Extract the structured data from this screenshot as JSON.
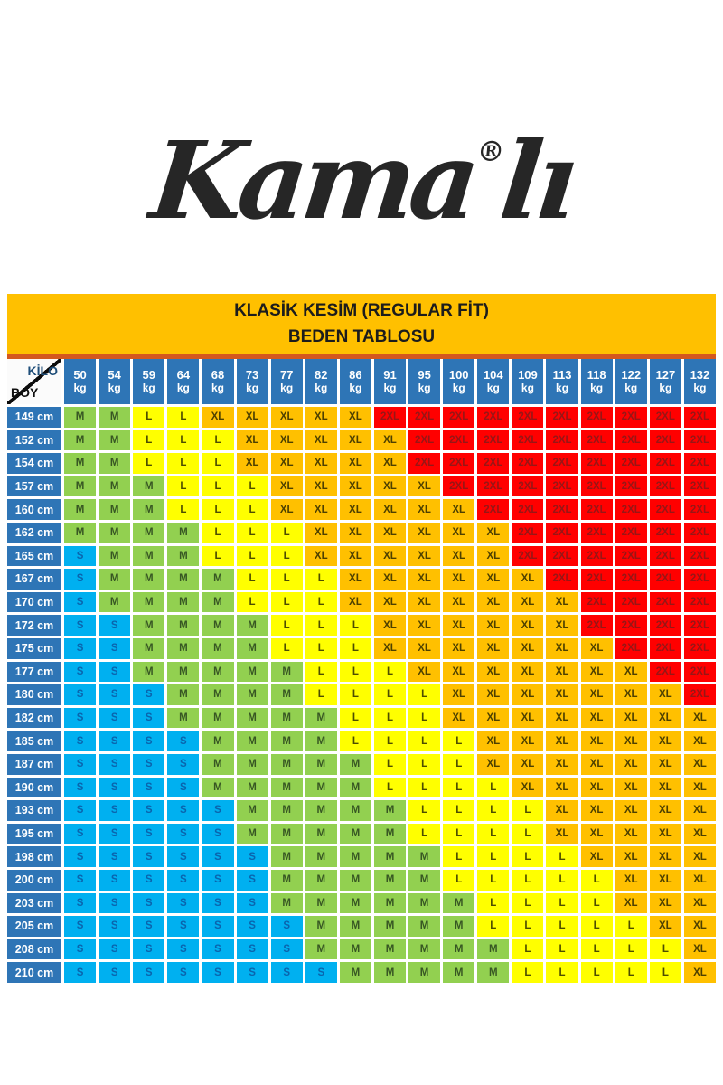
{
  "logo": {
    "pre": "Kama",
    "registered": "®",
    "post": "lı",
    "full_brand": "Kamalı"
  },
  "banner": {
    "line1": "KLASİK KESİM (REGULAR FİT)",
    "line2": "BEDEN TABLOSU"
  },
  "table_ui": {
    "corner_top_right": "KİLO",
    "corner_bottom_left": "BOY",
    "weight_unit": "kg",
    "height_unit": "cm"
  },
  "colors": {
    "banner_bg": "#FFC000",
    "divider": "#D4581E",
    "header_bg": "#2E75B6",
    "header_text": "#FFFFFF",
    "corner_kilo_text": "#1F4E79",
    "corner_boy_text": "#111111",
    "size_bg": {
      "S": "#00B0F0",
      "M": "#92D050",
      "L": "#FFFF00",
      "XL": "#FFC000",
      "2XL": "#FF0000"
    },
    "size_text": {
      "S": "#0A64AD",
      "M": "#375623",
      "L": "#4D4D00",
      "XL": "#4D4000",
      "2XL": "#971616"
    }
  },
  "chart_data": {
    "type": "table",
    "title": "KLASİK KESİM (REGULAR FİT)",
    "subtitle": "BEDEN TABLOSU",
    "xlabel": "KİLO (kg)",
    "ylabel": "BOY (cm)",
    "columns_kg": [
      50,
      54,
      59,
      64,
      68,
      73,
      77,
      82,
      86,
      91,
      95,
      100,
      104,
      109,
      113,
      118,
      122,
      127,
      132
    ],
    "rows_cm": [
      149,
      152,
      154,
      157,
      160,
      162,
      165,
      167,
      170,
      172,
      175,
      177,
      180,
      182,
      185,
      187,
      190,
      193,
      195,
      198,
      200,
      203,
      205,
      208,
      210
    ],
    "legend": {
      "S": "cyan-blue",
      "M": "green",
      "L": "yellow",
      "XL": "orange",
      "2XL": "red"
    },
    "cells": [
      [
        "M",
        "M",
        "L",
        "L",
        "XL",
        "XL",
        "XL",
        "XL",
        "XL",
        "2XL",
        "2XL",
        "2XL",
        "2XL",
        "2XL",
        "2XL",
        "2XL",
        "2XL",
        "2XL",
        "2XL"
      ],
      [
        "M",
        "M",
        "L",
        "L",
        "L",
        "XL",
        "XL",
        "XL",
        "XL",
        "XL",
        "2XL",
        "2XL",
        "2XL",
        "2XL",
        "2XL",
        "2XL",
        "2XL",
        "2XL",
        "2XL"
      ],
      [
        "M",
        "M",
        "L",
        "L",
        "L",
        "XL",
        "XL",
        "XL",
        "XL",
        "XL",
        "2XL",
        "2XL",
        "2XL",
        "2XL",
        "2XL",
        "2XL",
        "2XL",
        "2XL",
        "2XL"
      ],
      [
        "M",
        "M",
        "M",
        "L",
        "L",
        "L",
        "XL",
        "XL",
        "XL",
        "XL",
        "XL",
        "2XL",
        "2XL",
        "2XL",
        "2XL",
        "2XL",
        "2XL",
        "2XL",
        "2XL"
      ],
      [
        "M",
        "M",
        "M",
        "L",
        "L",
        "L",
        "XL",
        "XL",
        "XL",
        "XL",
        "XL",
        "XL",
        "2XL",
        "2XL",
        "2XL",
        "2XL",
        "2XL",
        "2XL",
        "2XL"
      ],
      [
        "M",
        "M",
        "M",
        "M",
        "L",
        "L",
        "L",
        "XL",
        "XL",
        "XL",
        "XL",
        "XL",
        "XL",
        "2XL",
        "2XL",
        "2XL",
        "2XL",
        "2XL",
        "2XL"
      ],
      [
        "S",
        "M",
        "M",
        "M",
        "L",
        "L",
        "L",
        "XL",
        "XL",
        "XL",
        "XL",
        "XL",
        "XL",
        "2XL",
        "2XL",
        "2XL",
        "2XL",
        "2XL",
        "2XL"
      ],
      [
        "S",
        "M",
        "M",
        "M",
        "M",
        "L",
        "L",
        "L",
        "XL",
        "XL",
        "XL",
        "XL",
        "XL",
        "XL",
        "2XL",
        "2XL",
        "2XL",
        "2XL",
        "2XL"
      ],
      [
        "S",
        "M",
        "M",
        "M",
        "M",
        "L",
        "L",
        "L",
        "XL",
        "XL",
        "XL",
        "XL",
        "XL",
        "XL",
        "XL",
        "2XL",
        "2XL",
        "2XL",
        "2XL"
      ],
      [
        "S",
        "S",
        "M",
        "M",
        "M",
        "M",
        "L",
        "L",
        "L",
        "XL",
        "XL",
        "XL",
        "XL",
        "XL",
        "XL",
        "2XL",
        "2XL",
        "2XL",
        "2XL"
      ],
      [
        "S",
        "S",
        "M",
        "M",
        "M",
        "M",
        "L",
        "L",
        "L",
        "XL",
        "XL",
        "XL",
        "XL",
        "XL",
        "XL",
        "XL",
        "2XL",
        "2XL",
        "2XL"
      ],
      [
        "S",
        "S",
        "M",
        "M",
        "M",
        "M",
        "M",
        "L",
        "L",
        "L",
        "XL",
        "XL",
        "XL",
        "XL",
        "XL",
        "XL",
        "XL",
        "2XL",
        "2XL"
      ],
      [
        "S",
        "S",
        "S",
        "M",
        "M",
        "M",
        "M",
        "L",
        "L",
        "L",
        "L",
        "XL",
        "XL",
        "XL",
        "XL",
        "XL",
        "XL",
        "XL",
        "2XL"
      ],
      [
        "S",
        "S",
        "S",
        "M",
        "M",
        "M",
        "M",
        "M",
        "L",
        "L",
        "L",
        "XL",
        "XL",
        "XL",
        "XL",
        "XL",
        "XL",
        "XL",
        "XL"
      ],
      [
        "S",
        "S",
        "S",
        "S",
        "M",
        "M",
        "M",
        "M",
        "L",
        "L",
        "L",
        "L",
        "XL",
        "XL",
        "XL",
        "XL",
        "XL",
        "XL",
        "XL"
      ],
      [
        "S",
        "S",
        "S",
        "S",
        "M",
        "M",
        "M",
        "M",
        "M",
        "L",
        "L",
        "L",
        "XL",
        "XL",
        "XL",
        "XL",
        "XL",
        "XL",
        "XL"
      ],
      [
        "S",
        "S",
        "S",
        "S",
        "M",
        "M",
        "M",
        "M",
        "M",
        "L",
        "L",
        "L",
        "L",
        "XL",
        "XL",
        "XL",
        "XL",
        "XL",
        "XL"
      ],
      [
        "S",
        "S",
        "S",
        "S",
        "S",
        "M",
        "M",
        "M",
        "M",
        "M",
        "L",
        "L",
        "L",
        "L",
        "XL",
        "XL",
        "XL",
        "XL",
        "XL"
      ],
      [
        "S",
        "S",
        "S",
        "S",
        "S",
        "M",
        "M",
        "M",
        "M",
        "M",
        "L",
        "L",
        "L",
        "L",
        "XL",
        "XL",
        "XL",
        "XL",
        "XL"
      ],
      [
        "S",
        "S",
        "S",
        "S",
        "S",
        "S",
        "M",
        "M",
        "M",
        "M",
        "M",
        "L",
        "L",
        "L",
        "L",
        "XL",
        "XL",
        "XL",
        "XL"
      ],
      [
        "S",
        "S",
        "S",
        "S",
        "S",
        "S",
        "M",
        "M",
        "M",
        "M",
        "M",
        "L",
        "L",
        "L",
        "L",
        "L",
        "XL",
        "XL",
        "XL"
      ],
      [
        "S",
        "S",
        "S",
        "S",
        "S",
        "S",
        "M",
        "M",
        "M",
        "M",
        "M",
        "M",
        "L",
        "L",
        "L",
        "L",
        "XL",
        "XL",
        "XL"
      ],
      [
        "S",
        "S",
        "S",
        "S",
        "S",
        "S",
        "S",
        "M",
        "M",
        "M",
        "M",
        "M",
        "L",
        "L",
        "L",
        "L",
        "L",
        "XL",
        "XL"
      ],
      [
        "S",
        "S",
        "S",
        "S",
        "S",
        "S",
        "S",
        "M",
        "M",
        "M",
        "M",
        "M",
        "M",
        "L",
        "L",
        "L",
        "L",
        "L",
        "XL"
      ],
      [
        "S",
        "S",
        "S",
        "S",
        "S",
        "S",
        "S",
        "S",
        "M",
        "M",
        "M",
        "M",
        "M",
        "L",
        "L",
        "L",
        "L",
        "L",
        "XL"
      ]
    ]
  }
}
